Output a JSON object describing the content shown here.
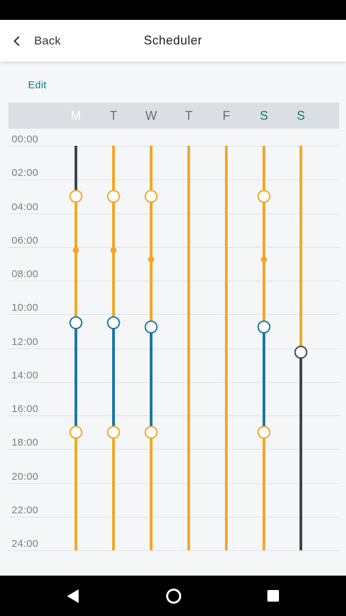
{
  "header": {
    "back_label": "Back",
    "title": "Scheduler"
  },
  "edit_label": "Edit",
  "days": [
    {
      "label": "M",
      "today": true,
      "weekend": false
    },
    {
      "label": "T",
      "today": false,
      "weekend": false
    },
    {
      "label": "W",
      "today": false,
      "weekend": false
    },
    {
      "label": "T",
      "today": false,
      "weekend": false
    },
    {
      "label": "F",
      "today": false,
      "weekend": false
    },
    {
      "label": "S",
      "today": false,
      "weekend": true
    },
    {
      "label": "S",
      "today": false,
      "weekend": true
    }
  ],
  "hours": [
    "00:00",
    "02:00",
    "04:00",
    "06:00",
    "08:00",
    "10:00",
    "12:00",
    "14:00",
    "16:00",
    "18:00",
    "20:00",
    "22:00",
    "24:00"
  ],
  "colors": {
    "comfort": "#f5a623",
    "economy": "#1776a6",
    "off": "#3a4450",
    "today": "#e8156f",
    "accent": "#0e7c86"
  },
  "chart_data": {
    "type": "schedule",
    "days": [
      {
        "segments": [
          {
            "from": 0,
            "to": 3,
            "mode": "off"
          },
          {
            "from": 3,
            "to": 10.5,
            "mode": "comfort"
          },
          {
            "from": 10.5,
            "to": 17,
            "mode": "economy"
          },
          {
            "from": 17,
            "to": 24,
            "mode": "comfort"
          }
        ],
        "switchpoints": [
          {
            "t": 3,
            "mode": "comfort"
          },
          {
            "t": 10.5,
            "mode": "economy"
          },
          {
            "t": 17,
            "mode": "comfort"
          }
        ],
        "markers": [
          6.2
        ]
      },
      {
        "segments": [
          {
            "from": 0,
            "to": 3,
            "mode": "comfort"
          },
          {
            "from": 3,
            "to": 10.5,
            "mode": "comfort"
          },
          {
            "from": 10.5,
            "to": 17,
            "mode": "economy"
          },
          {
            "from": 17,
            "to": 24,
            "mode": "comfort"
          }
        ],
        "switchpoints": [
          {
            "t": 3,
            "mode": "comfort"
          },
          {
            "t": 10.5,
            "mode": "economy"
          },
          {
            "t": 17,
            "mode": "comfort"
          }
        ],
        "markers": [
          6.2
        ]
      },
      {
        "segments": [
          {
            "from": 0,
            "to": 3,
            "mode": "comfort"
          },
          {
            "from": 3,
            "to": 10.75,
            "mode": "comfort"
          },
          {
            "from": 10.75,
            "to": 17,
            "mode": "economy"
          },
          {
            "from": 17,
            "to": 24,
            "mode": "comfort"
          }
        ],
        "switchpoints": [
          {
            "t": 3,
            "mode": "comfort"
          },
          {
            "t": 10.75,
            "mode": "economy"
          },
          {
            "t": 17,
            "mode": "comfort"
          }
        ],
        "markers": [
          6.75
        ]
      },
      {
        "segments": [
          {
            "from": 0,
            "to": 24,
            "mode": "comfort"
          }
        ],
        "switchpoints": [],
        "markers": []
      },
      {
        "segments": [
          {
            "from": 0,
            "to": 24,
            "mode": "comfort"
          }
        ],
        "switchpoints": [],
        "markers": []
      },
      {
        "segments": [
          {
            "from": 0,
            "to": 3,
            "mode": "comfort"
          },
          {
            "from": 3,
            "to": 10.75,
            "mode": "comfort"
          },
          {
            "from": 10.75,
            "to": 17,
            "mode": "economy"
          },
          {
            "from": 17,
            "to": 24,
            "mode": "comfort"
          }
        ],
        "switchpoints": [
          {
            "t": 3,
            "mode": "comfort"
          },
          {
            "t": 10.75,
            "mode": "economy"
          },
          {
            "t": 17,
            "mode": "comfort"
          }
        ],
        "markers": [
          6.75
        ]
      },
      {
        "segments": [
          {
            "from": 0,
            "to": 12.25,
            "mode": "comfort"
          },
          {
            "from": 12.25,
            "to": 24,
            "mode": "off"
          }
        ],
        "switchpoints": [
          {
            "t": 12.25,
            "mode": "off"
          }
        ],
        "markers": []
      }
    ]
  }
}
